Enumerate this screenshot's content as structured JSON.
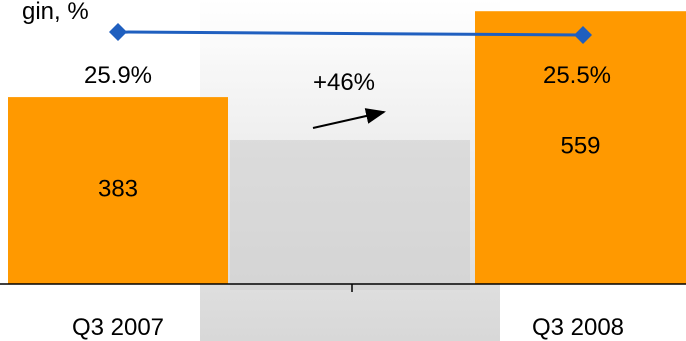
{
  "chart_data": {
    "type": "bar",
    "categories": [
      "Q3 2007",
      "Q3 2008"
    ],
    "series": [
      {
        "type": "bar",
        "values": [
          383,
          559
        ],
        "color": "#FF9900"
      },
      {
        "type": "line",
        "values": [
          25.9,
          25.5
        ],
        "labels": [
          "25.9%",
          "25.5%"
        ],
        "color": "#1F5FBF",
        "marker": "diamond"
      }
    ],
    "bar_labels": [
      "383",
      "559"
    ],
    "annotation": "+46%",
    "title_fragment": "gin, %"
  }
}
